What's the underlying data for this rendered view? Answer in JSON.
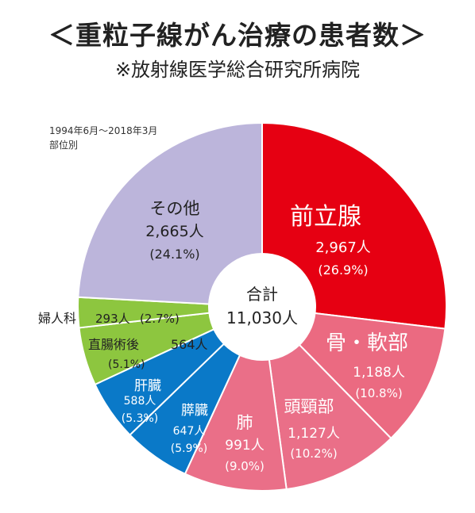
{
  "title": "＜重粒子線がん治療の患者数＞",
  "subtitle": "※放射線医学総合研究所病院",
  "period": "1994年6月～2018年3月",
  "breakdown_label": "部位別",
  "total_label": "合計",
  "total_value": "11,030人",
  "colors": {
    "prostate": "#e60012",
    "bone": "#eb6a81",
    "pink": "#ea6f88",
    "blue": "#0a79c8",
    "green": "#8dc63f",
    "other": "#bcb5db",
    "text_light": "#ffffff",
    "text_dark": "#222222"
  },
  "chart_data": {
    "type": "pie",
    "donut": true,
    "start": "12 o'clock, clockwise",
    "slices": [
      {
        "name": "前立腺",
        "count": 2967,
        "percent": 26.9,
        "count_label": "2,967人",
        "percent_label": "(26.9%)",
        "color": "#e60012"
      },
      {
        "name": "骨・軟部",
        "count": 1188,
        "percent": 10.8,
        "count_label": "1,188人",
        "percent_label": "(10.8%)",
        "color": "#eb6a81"
      },
      {
        "name": "頭頸部",
        "count": 1127,
        "percent": 10.2,
        "count_label": "1,127人",
        "percent_label": "(10.2%)",
        "color": "#ea6f88"
      },
      {
        "name": "肺",
        "count": 991,
        "percent": 9.0,
        "count_label": "991人",
        "percent_label": "(9.0%)",
        "color": "#ea6f88"
      },
      {
        "name": "膵臓",
        "count": 647,
        "percent": 5.9,
        "count_label": "647人",
        "percent_label": "(5.9%)",
        "color": "#0a79c8"
      },
      {
        "name": "肝臓",
        "count": 588,
        "percent": 5.3,
        "count_label": "588人",
        "percent_label": "(5.3%)",
        "color": "#0a79c8"
      },
      {
        "name": "直腸術後",
        "count": 564,
        "percent": 5.1,
        "count_label": "564人",
        "percent_label": "(5.1%)",
        "color": "#8dc63f"
      },
      {
        "name": "婦人科",
        "count": 293,
        "percent": 2.7,
        "count_label": "293人",
        "percent_label": "(2.7%)",
        "color": "#8dc63f"
      },
      {
        "name": "その他",
        "count": 2665,
        "percent": 24.1,
        "count_label": "2,665人",
        "percent_label": "(24.1%)",
        "color": "#bcb5db"
      }
    ]
  }
}
